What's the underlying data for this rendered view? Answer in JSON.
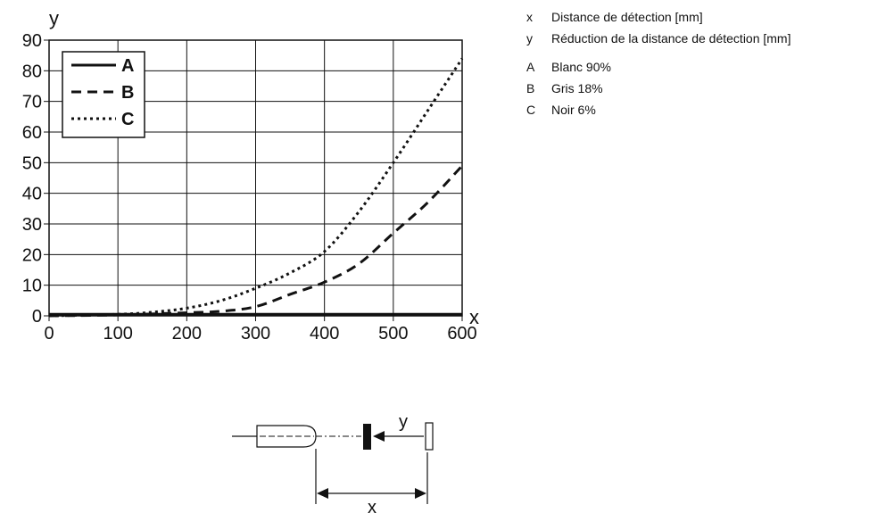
{
  "chart_data": {
    "type": "line",
    "xlabel": "x",
    "ylabel": "y",
    "xlim": [
      0,
      600
    ],
    "ylim": [
      0,
      90
    ],
    "xticks": [
      0,
      100,
      200,
      300,
      400,
      500,
      600
    ],
    "yticks": [
      0,
      10,
      20,
      30,
      40,
      50,
      60,
      70,
      80,
      90
    ],
    "grid": true,
    "legend_position": "top-left",
    "series": [
      {
        "name": "A",
        "style": "solid",
        "x": [
          0,
          100,
          200,
          300,
          400,
          500,
          600
        ],
        "y": [
          0.5,
          0.5,
          0.5,
          0.5,
          0.5,
          0.5,
          0.5
        ]
      },
      {
        "name": "B",
        "style": "dashed",
        "x": [
          0,
          100,
          200,
          250,
          300,
          350,
          400,
          450,
          500,
          550,
          600
        ],
        "y": [
          0,
          0.3,
          1,
          1.5,
          3,
          7,
          11,
          17,
          27,
          37,
          49
        ]
      },
      {
        "name": "C",
        "style": "dotted",
        "x": [
          0,
          100,
          150,
          200,
          250,
          300,
          350,
          400,
          450,
          500,
          550,
          600
        ],
        "y": [
          0,
          0.5,
          1.2,
          2.5,
          5,
          9,
          14,
          21,
          34,
          50,
          67,
          84
        ]
      }
    ]
  },
  "key": {
    "axes": [
      {
        "letter": "x",
        "text": "Distance de détection [mm]"
      },
      {
        "letter": "y",
        "text": "Réduction de la distance de détection [mm]"
      }
    ],
    "series": [
      {
        "letter": "A",
        "text": "Blanc 90%"
      },
      {
        "letter": "B",
        "text": "Gris 18%"
      },
      {
        "letter": "C",
        "text": "Noir 6%"
      }
    ]
  },
  "diagram": {
    "x_label": "x",
    "y_label": "y"
  }
}
